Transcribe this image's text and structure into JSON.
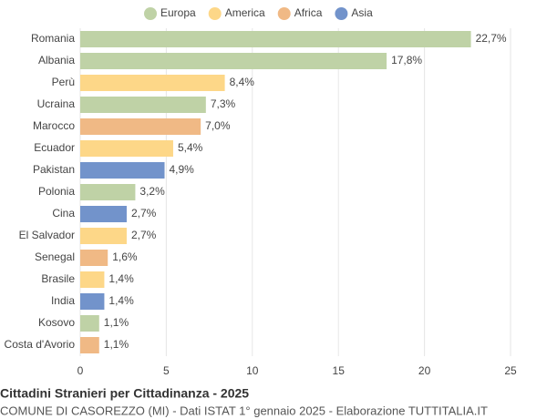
{
  "chart_data": {
    "type": "bar",
    "orientation": "horizontal",
    "title": "Cittadini Stranieri per Cittadinanza - 2025",
    "subtitle": "COMUNE DI CASOREZZO (MI) - Dati ISTAT 1° gennaio 2025 - Elaborazione TUTTITALIA.IT",
    "categories": [
      "Romania",
      "Albania",
      "Perù",
      "Ucraina",
      "Marocco",
      "Ecuador",
      "Pakistan",
      "Polonia",
      "Cina",
      "El Salvador",
      "Senegal",
      "Brasile",
      "India",
      "Kosovo",
      "Costa d'Avorio"
    ],
    "series": [
      {
        "name": "Europa",
        "color": "#bfd2a6",
        "values": [
          22.7,
          17.8,
          null,
          7.3,
          null,
          null,
          null,
          3.2,
          null,
          null,
          null,
          null,
          null,
          1.1,
          null
        ],
        "value_labels": [
          "22,7%",
          "17,8%",
          null,
          "7,3%",
          null,
          null,
          null,
          "3,2%",
          null,
          null,
          null,
          null,
          null,
          "1,1%",
          null
        ]
      },
      {
        "name": "America",
        "color": "#fdd788",
        "values": [
          null,
          null,
          8.4,
          null,
          null,
          5.4,
          null,
          null,
          null,
          2.7,
          null,
          1.4,
          null,
          null,
          null
        ],
        "value_labels": [
          null,
          null,
          "8,4%",
          null,
          null,
          "5,4%",
          null,
          null,
          null,
          "2,7%",
          null,
          "1,4%",
          null,
          null,
          null
        ]
      },
      {
        "name": "Africa",
        "color": "#f0b985",
        "values": [
          null,
          null,
          null,
          null,
          7.0,
          null,
          null,
          null,
          null,
          null,
          1.6,
          null,
          null,
          null,
          1.1
        ],
        "value_labels": [
          null,
          null,
          null,
          null,
          "7,0%",
          null,
          null,
          null,
          null,
          null,
          "1,6%",
          null,
          null,
          null,
          "1,1%"
        ]
      },
      {
        "name": "Asia",
        "color": "#7293cb",
        "values": [
          null,
          null,
          null,
          null,
          null,
          null,
          4.9,
          null,
          2.7,
          null,
          null,
          null,
          1.4,
          null,
          null
        ],
        "value_labels": [
          null,
          null,
          null,
          null,
          null,
          null,
          "4,9%",
          null,
          "2,7%",
          null,
          null,
          null,
          "1,4%",
          null,
          null
        ]
      }
    ],
    "xlim": [
      0,
      25
    ],
    "xticks": [
      0,
      5,
      10,
      15,
      20,
      25
    ],
    "grid": true
  }
}
